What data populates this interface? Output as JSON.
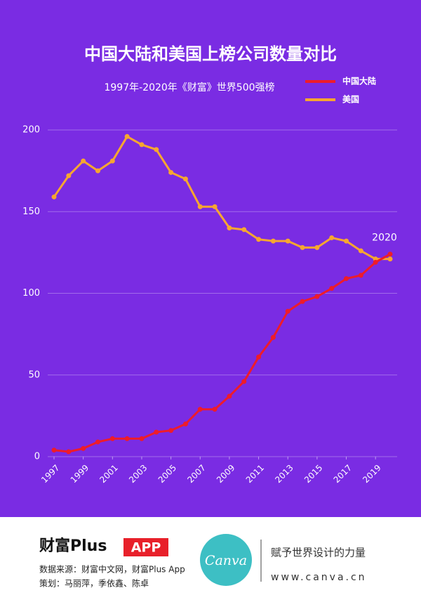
{
  "chart_data": {
    "type": "line",
    "title": "中国大陆和美国上榜公司数量对比",
    "subtitle": "1997年-2020年《财富》世界500强榜",
    "annotation": "2020",
    "x": [
      1997,
      1998,
      1999,
      2000,
      2001,
      2002,
      2003,
      2004,
      2005,
      2006,
      2007,
      2008,
      2009,
      2010,
      2011,
      2012,
      2013,
      2014,
      2015,
      2016,
      2017,
      2018,
      2019,
      2020
    ],
    "xlim": [
      1997,
      2020
    ],
    "xticks": [
      1997,
      1999,
      2001,
      2003,
      2005,
      2007,
      2009,
      2011,
      2013,
      2015,
      2017,
      2019
    ],
    "ylim": [
      0,
      200
    ],
    "yticks": [
      0,
      50,
      100,
      150,
      200
    ],
    "grid": true,
    "legend": "top-right",
    "series": [
      {
        "name": "美国",
        "color": "#f7a630",
        "values": [
          159,
          172,
          181,
          175,
          181,
          196,
          191,
          188,
          174,
          170,
          153,
          153,
          140,
          139,
          133,
          132,
          132,
          128,
          128,
          134,
          132,
          126,
          121,
          121
        ]
      },
      {
        "name": "中国大陆",
        "color": "#ee1c2a",
        "values": [
          4,
          3,
          5,
          9,
          11,
          11,
          11,
          15,
          16,
          20,
          29,
          29,
          37,
          46,
          61,
          73,
          89,
          95,
          98,
          103,
          109,
          111,
          119,
          124
        ]
      }
    ]
  },
  "footer": {
    "brand": "财富Plus",
    "brand_tag": "APP",
    "source": "数据来源：财富中文网，财富Plus App",
    "credits": "策划：马丽萍，季依鑫、陈卓",
    "logo": "Canva",
    "slogan": "赋予世界设计的力量",
    "url": "www.canva.cn"
  }
}
